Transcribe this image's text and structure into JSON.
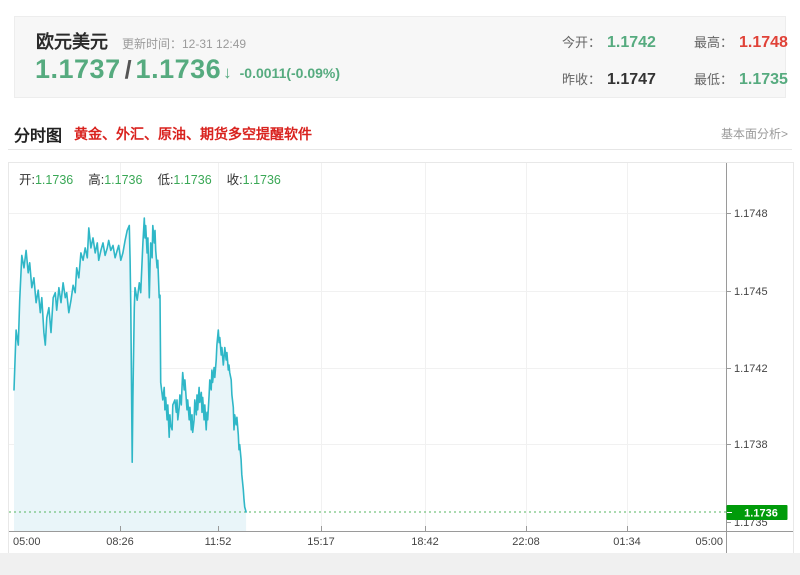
{
  "header": {
    "pair_name": "欧元美元",
    "update_time": "更新时间：12-31 12:49",
    "bid": "1.1737",
    "separator": "/",
    "ask": "1.1736",
    "direction_arrow": "↓",
    "change": "-0.0011(-0.09%)",
    "stats": {
      "open_label": "今开：",
      "open_value": "1.1742",
      "high_label": "最高：",
      "high_value": "1.1748",
      "prev_close_label": "昨收：",
      "prev_close_value": "1.1747",
      "low_label": "最低：",
      "low_value": "1.1735"
    }
  },
  "tabbar": {
    "active_tab": "分时图",
    "promo_link": "黄金、外汇、原油、期货多空提醒软件",
    "analysis_link": "基本面分析>"
  },
  "chart_data": {
    "type": "line",
    "title": "欧元美元分时图",
    "legend": {
      "open_label": "开:",
      "open": "1.1736",
      "high_label": "高:",
      "high": "1.1736",
      "low_label": "低:",
      "low": "1.1736",
      "close_label": "收:",
      "close": "1.1736"
    },
    "x_ticks": [
      "05:00",
      "08:26",
      "11:52",
      "15:17",
      "18:42",
      "22:08",
      "01:34",
      "05:00"
    ],
    "y_ticks": [
      "1.1748",
      "1.1745",
      "1.1742",
      "1.1738",
      "1.1735"
    ],
    "current_price": "1.1736",
    "ylim": [
      1.17345,
      1.17485
    ],
    "grid": true,
    "legend_position": "top-left",
    "colors": {
      "line": "#2fb7c7",
      "fill": "#e9f5f9",
      "current_badge": "#009b0a",
      "current_line": "#55b55f"
    },
    "series": [
      [
        0.0,
        1.17409
      ],
      [
        0.003,
        1.17433
      ],
      [
        0.006,
        1.17427
      ],
      [
        0.008,
        1.17445
      ],
      [
        0.011,
        1.17463
      ],
      [
        0.014,
        1.17458
      ],
      [
        0.017,
        1.17465
      ],
      [
        0.02,
        1.17456
      ],
      [
        0.022,
        1.1746
      ],
      [
        0.025,
        1.1745
      ],
      [
        0.028,
        1.17454
      ],
      [
        0.031,
        1.17444
      ],
      [
        0.034,
        1.17449
      ],
      [
        0.037,
        1.1744
      ],
      [
        0.039,
        1.17446
      ],
      [
        0.042,
        1.17432
      ],
      [
        0.044,
        1.17427
      ],
      [
        0.046,
        1.17438
      ],
      [
        0.049,
        1.17442
      ],
      [
        0.052,
        1.17432
      ],
      [
        0.055,
        1.17446
      ],
      [
        0.058,
        1.17448
      ],
      [
        0.06,
        1.17441
      ],
      [
        0.063,
        1.1745
      ],
      [
        0.066,
        1.17444
      ],
      [
        0.069,
        1.17452
      ],
      [
        0.072,
        1.17446
      ],
      [
        0.074,
        1.17448
      ],
      [
        0.077,
        1.1744
      ],
      [
        0.08,
        1.17445
      ],
      [
        0.083,
        1.17451
      ],
      [
        0.086,
        1.17448
      ],
      [
        0.088,
        1.17458
      ],
      [
        0.091,
        1.17454
      ],
      [
        0.094,
        1.17464
      ],
      [
        0.097,
        1.17461
      ],
      [
        0.1,
        1.17466
      ],
      [
        0.103,
        1.17462
      ],
      [
        0.105,
        1.17474
      ],
      [
        0.108,
        1.17466
      ],
      [
        0.111,
        1.1747
      ],
      [
        0.114,
        1.17464
      ],
      [
        0.117,
        1.17468
      ],
      [
        0.119,
        1.17461
      ],
      [
        0.122,
        1.17465
      ],
      [
        0.125,
        1.17468
      ],
      [
        0.128,
        1.17463
      ],
      [
        0.131,
        1.17466
      ],
      [
        0.133,
        1.17469
      ],
      [
        0.136,
        1.17465
      ],
      [
        0.139,
        1.17467
      ],
      [
        0.142,
        1.17462
      ],
      [
        0.145,
        1.17465
      ],
      [
        0.147,
        1.17467
      ],
      [
        0.15,
        1.17461
      ],
      [
        0.153,
        1.17464
      ],
      [
        0.156,
        1.17469
      ],
      [
        0.159,
        1.17473
      ],
      [
        0.162,
        1.17475
      ],
      [
        0.163,
        1.17461
      ],
      [
        0.164,
        1.17442
      ],
      [
        0.166,
        1.1738
      ],
      [
        0.167,
        1.17406
      ],
      [
        0.169,
        1.17442
      ],
      [
        0.17,
        1.1745
      ],
      [
        0.173,
        1.17445
      ],
      [
        0.176,
        1.17452
      ],
      [
        0.178,
        1.17448
      ],
      [
        0.181,
        1.17468
      ],
      [
        0.183,
        1.17478
      ],
      [
        0.184,
        1.1747
      ],
      [
        0.185,
        1.17475
      ],
      [
        0.187,
        1.17464
      ],
      [
        0.188,
        1.1747
      ],
      [
        0.19,
        1.17446
      ],
      [
        0.191,
        1.17458
      ],
      [
        0.192,
        1.17468
      ],
      [
        0.194,
        1.17462
      ],
      [
        0.195,
        1.17475
      ],
      [
        0.197,
        1.17468
      ],
      [
        0.198,
        1.17473
      ],
      [
        0.199,
        1.17465
      ],
      [
        0.201,
        1.17458
      ],
      [
        0.202,
        1.17461
      ],
      [
        0.204,
        1.17446
      ],
      [
        0.205,
        1.17447
      ],
      [
        0.206,
        1.17412
      ],
      [
        0.209,
        1.17405
      ],
      [
        0.211,
        1.1741
      ],
      [
        0.212,
        1.17401
      ],
      [
        0.213,
        1.17406
      ],
      [
        0.215,
        1.17397
      ],
      [
        0.216,
        1.17403
      ],
      [
        0.218,
        1.1739
      ],
      [
        0.219,
        1.17399
      ],
      [
        0.22,
        1.17395
      ],
      [
        0.222,
        1.17393
      ],
      [
        0.223,
        1.17403
      ],
      [
        0.226,
        1.17405
      ],
      [
        0.228,
        1.174
      ],
      [
        0.229,
        1.17405
      ],
      [
        0.23,
        1.17397
      ],
      [
        0.232,
        1.17402
      ],
      [
        0.233,
        1.17407
      ],
      [
        0.235,
        1.17403
      ],
      [
        0.236,
        1.1741
      ],
      [
        0.237,
        1.17416
      ],
      [
        0.239,
        1.17409
      ],
      [
        0.24,
        1.17413
      ],
      [
        0.242,
        1.17405
      ],
      [
        0.243,
        1.17401
      ],
      [
        0.244,
        1.17405
      ],
      [
        0.246,
        1.17397
      ],
      [
        0.247,
        1.17402
      ],
      [
        0.249,
        1.17393
      ],
      [
        0.25,
        1.17399
      ],
      [
        0.251,
        1.17392
      ],
      [
        0.253,
        1.17397
      ],
      [
        0.254,
        1.17405
      ],
      [
        0.256,
        1.17399
      ],
      [
        0.257,
        1.17407
      ],
      [
        0.258,
        1.17401
      ],
      [
        0.26,
        1.1741
      ],
      [
        0.261,
        1.17404
      ],
      [
        0.263,
        1.17408
      ],
      [
        0.264,
        1.174
      ],
      [
        0.265,
        1.17406
      ],
      [
        0.267,
        1.17397
      ],
      [
        0.268,
        1.17403
      ],
      [
        0.27,
        1.17393
      ],
      [
        0.271,
        1.174
      ],
      [
        0.272,
        1.17397
      ],
      [
        0.274,
        1.17407
      ],
      [
        0.275,
        1.17413
      ],
      [
        0.277,
        1.17409
      ],
      [
        0.278,
        1.17417
      ],
      [
        0.279,
        1.17412
      ],
      [
        0.281,
        1.17418
      ],
      [
        0.282,
        1.17414
      ],
      [
        0.284,
        1.17421
      ],
      [
        0.285,
        1.17427
      ],
      [
        0.287,
        1.17433
      ],
      [
        0.288,
        1.17428
      ],
      [
        0.289,
        1.1743
      ],
      [
        0.291,
        1.17423
      ],
      [
        0.292,
        1.17426
      ],
      [
        0.294,
        1.17419
      ],
      [
        0.295,
        1.17422
      ],
      [
        0.296,
        1.17426
      ],
      [
        0.298,
        1.17421
      ],
      [
        0.299,
        1.17424
      ],
      [
        0.301,
        1.17417
      ],
      [
        0.302,
        1.17419
      ],
      [
        0.303,
        1.17416
      ],
      [
        0.305,
        1.17413
      ],
      [
        0.306,
        1.17407
      ],
      [
        0.308,
        1.17402
      ],
      [
        0.309,
        1.17393
      ],
      [
        0.31,
        1.17399
      ],
      [
        0.312,
        1.17395
      ],
      [
        0.313,
        1.17398
      ],
      [
        0.315,
        1.17391
      ],
      [
        0.316,
        1.17385
      ],
      [
        0.317,
        1.17387
      ],
      [
        0.319,
        1.17381
      ],
      [
        0.32,
        1.17375
      ],
      [
        0.322,
        1.17369
      ],
      [
        0.323,
        1.17365
      ],
      [
        0.324,
        1.17362
      ],
      [
        0.326,
        1.1736
      ]
    ]
  }
}
